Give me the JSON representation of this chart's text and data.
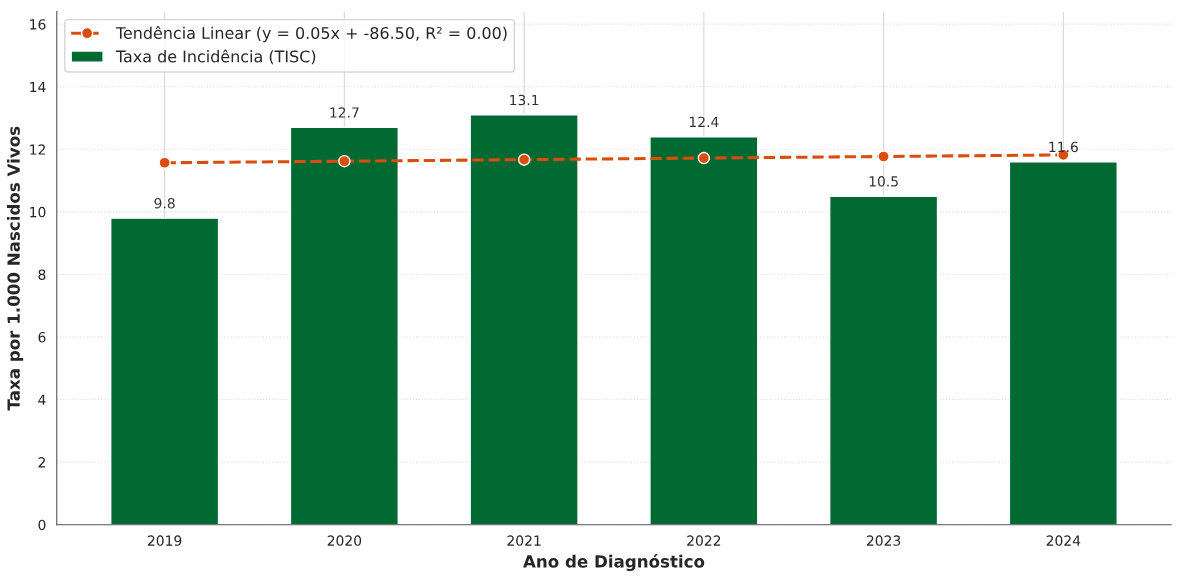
{
  "chart_data": {
    "type": "bar",
    "xlabel": "Ano de Diagnóstico",
    "ylabel": "Taxa por 1.000 Nascidos Vivos",
    "categories": [
      "2019",
      "2020",
      "2021",
      "2022",
      "2023",
      "2024"
    ],
    "series": [
      {
        "type": "line",
        "name": "Tendência Linear (y = 0.05x + -86.50, R² = 0.00)",
        "color": "#d94e0c",
        "values": [
          11.57,
          11.62,
          11.67,
          11.72,
          11.77,
          11.82
        ],
        "marker": "circle",
        "line_style": "dashed"
      },
      {
        "name": "Taxa de Incidência (TISC)",
        "color": "#006a32",
        "values": [
          9.8,
          12.7,
          13.1,
          12.4,
          10.5,
          11.6
        ],
        "value_labels": [
          "9.8",
          "12.7",
          "13.1",
          "12.4",
          "10.5",
          "11.6"
        ]
      }
    ],
    "ylim": [
      0,
      16.4
    ],
    "yticks": [
      0,
      2,
      4,
      6,
      8,
      10,
      12,
      14,
      16
    ],
    "grid": true,
    "legend": "top left"
  }
}
